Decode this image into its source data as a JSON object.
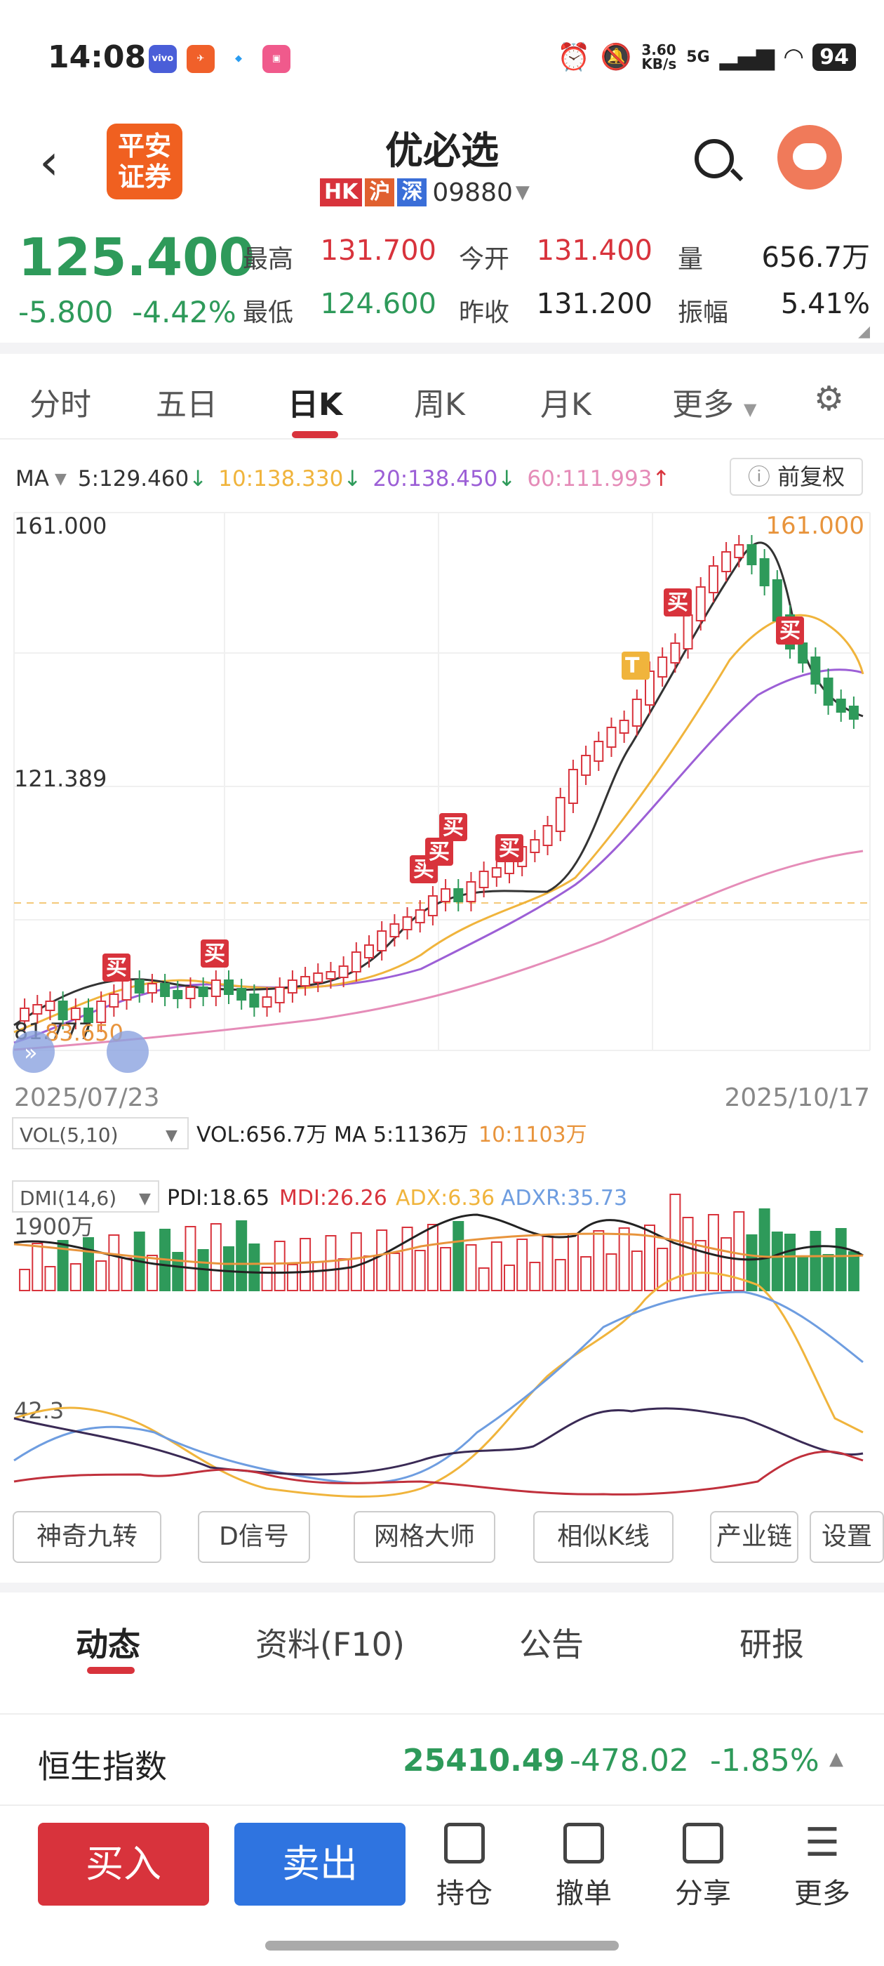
{
  "status": {
    "time": "14:08",
    "speed": "3.60\nKB/s",
    "net": "5G",
    "battery": "94"
  },
  "header": {
    "logo": "平安\n证券",
    "title": "优必选",
    "markets": [
      "HK",
      "沪",
      "深"
    ],
    "code": "09880"
  },
  "quote": {
    "price": "125.400",
    "change": "-5.800",
    "change_pct": "-4.42%",
    "high_label": "最高",
    "high": "131.700",
    "low_label": "最低",
    "low": "124.600",
    "open_label": "今开",
    "open": "131.400",
    "prev_label": "昨收",
    "prev": "131.200",
    "vol_label": "量",
    "vol": "656.7万",
    "amp_label": "振幅",
    "amp": "5.41%"
  },
  "tabs": [
    "分时",
    "五日",
    "日K",
    "周K",
    "月K",
    "更多"
  ],
  "ma_legend": {
    "label": "MA",
    "ma5": "5:129.460",
    "ma10": "10:138.330",
    "ma20": "20:138.450",
    "ma60": "60:111.993",
    "adjust": "前复权"
  },
  "colors": {
    "up": "#d8333c",
    "down": "#2e9a5a",
    "ma5": "#333333",
    "ma10": "#f0b43c",
    "ma20": "#9c5fd6",
    "ma60": "#e58cb8"
  },
  "chart_data": {
    "type": "candlestick",
    "axis": {
      "top": "161.000",
      "mid": "121.389",
      "bottom": "81.777"
    },
    "date_start": "2025/07/23",
    "date_end": "2025/10/17",
    "max_label": "161.000",
    "min_label": "83.650",
    "signals": [
      "买",
      "买",
      "买",
      "买",
      "买",
      "买",
      "T",
      "买",
      "买"
    ],
    "vol_legend": {
      "label": "VOL(5,10)",
      "vol": "VOL:656.7万",
      "ma5": "MA 5:1136万",
      "ma10": "10:1103万",
      "axis": "1900万"
    },
    "dmi_legend": {
      "label": "DMI(14,6)",
      "pdi": "PDI:18.65",
      "mdi": "MDI:26.26",
      "adx": "ADX:6.36",
      "adxr": "ADXR:35.73",
      "axis": "42.3"
    }
  },
  "tools": [
    "神奇九转",
    "D信号",
    "网格大师",
    "相似K线",
    "产业链",
    "设置"
  ],
  "news_tabs": [
    "动态",
    "资料(F10)",
    "公告",
    "研报"
  ],
  "index": {
    "name": "恒生指数",
    "value": "25410.49",
    "change": "-478.02",
    "pct": "-1.85%"
  },
  "bottom": {
    "buy": "买入",
    "sell": "卖出",
    "items": [
      "持仓",
      "撤单",
      "分享",
      "更多"
    ]
  }
}
